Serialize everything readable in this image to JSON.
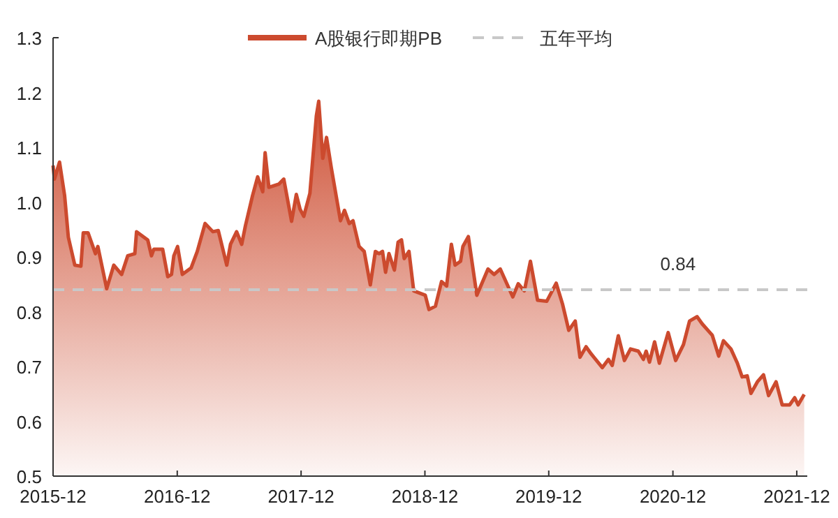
{
  "chart_data": {
    "type": "area",
    "legend": "top",
    "x": [
      "2015-12-01",
      "2015-12-05",
      "2015-12-20",
      "2016-01-04",
      "2016-01-15",
      "2016-02-03",
      "2016-02-21",
      "2016-02-28",
      "2016-03-13",
      "2016-04-04",
      "2016-04-11",
      "2016-05-07",
      "2016-05-28",
      "2016-06-20",
      "2016-07-08",
      "2016-07-29",
      "2016-08-03",
      "2016-09-05",
      "2016-09-16",
      "2016-09-23",
      "2016-10-19",
      "2016-11-03",
      "2016-11-14",
      "2016-11-21",
      "2016-12-02",
      "2016-12-16",
      "2017-01-11",
      "2017-01-29",
      "2017-02-21",
      "2017-03-16",
      "2017-04-01",
      "2017-04-26",
      "2017-05-07",
      "2017-05-25",
      "2017-06-09",
      "2017-06-20",
      "2017-07-11",
      "2017-07-26",
      "2017-08-10",
      "2017-08-17",
      "2017-08-28",
      "2017-09-27",
      "2017-10-11",
      "2017-11-03",
      "2017-11-17",
      "2017-11-28",
      "2017-12-09",
      "2017-12-27",
      "2018-01-15",
      "2018-01-22",
      "2018-02-03",
      "2018-02-14",
      "2018-02-28",
      "2018-03-27",
      "2018-04-08",
      "2018-04-22",
      "2018-05-03",
      "2018-05-21",
      "2018-06-05",
      "2018-06-23",
      "2018-07-08",
      "2018-07-19",
      "2018-07-29",
      "2018-08-07",
      "2018-08-17",
      "2018-09-02",
      "2018-09-13",
      "2018-09-23",
      "2018-10-01",
      "2018-10-15",
      "2018-10-29",
      "2018-12-02",
      "2018-12-13",
      "2019-01-01",
      "2019-01-19",
      "2019-02-03",
      "2019-02-17",
      "2019-02-28",
      "2019-03-16",
      "2019-03-23",
      "2019-04-08",
      "2019-05-03",
      "2019-06-05",
      "2019-06-23",
      "2019-07-11",
      "2019-08-17",
      "2019-09-02",
      "2019-09-20",
      "2019-10-08",
      "2019-10-29",
      "2019-11-25",
      "2019-12-23",
      "2020-01-11",
      "2020-01-29",
      "2020-02-17",
      "2020-03-02",
      "2020-03-20",
      "2020-04-04",
      "2020-05-07",
      "2020-05-25",
      "2020-06-05",
      "2020-06-23",
      "2020-07-11",
      "2020-07-29",
      "2020-08-21",
      "2020-09-05",
      "2020-09-13",
      "2020-09-23",
      "2020-10-08",
      "2020-10-22",
      "2020-11-17",
      "2020-12-09",
      "2021-01-01",
      "2021-01-19",
      "2021-02-10",
      "2021-02-25",
      "2021-03-27",
      "2021-04-15",
      "2021-04-29",
      "2021-05-21",
      "2021-06-09",
      "2021-06-23",
      "2021-07-08",
      "2021-07-19",
      "2021-08-07",
      "2021-08-25",
      "2021-09-09",
      "2021-10-01",
      "2021-10-19",
      "2021-11-10",
      "2021-11-25",
      "2021-12-05",
      "2021-12-23"
    ],
    "series": [
      {
        "name": "A股银行即期PB",
        "color": "#cc4a2e",
        "values": [
          1.067,
          1.042,
          1.073,
          1.012,
          0.936,
          0.885,
          0.883,
          0.944,
          0.944,
          0.906,
          0.919,
          0.842,
          0.885,
          0.868,
          0.902,
          0.906,
          0.946,
          0.931,
          0.902,
          0.914,
          0.914,
          0.864,
          0.868,
          0.902,
          0.919,
          0.868,
          0.88,
          0.91,
          0.961,
          0.946,
          0.948,
          0.885,
          0.923,
          0.946,
          0.923,
          0.957,
          1.012,
          1.046,
          1.019,
          1.09,
          1.027,
          1.033,
          1.042,
          0.965,
          1.014,
          0.987,
          0.974,
          1.016,
          1.157,
          1.184,
          1.08,
          1.118,
          1.063,
          0.966,
          0.985,
          0.961,
          0.966,
          0.919,
          0.91,
          0.849,
          0.91,
          0.906,
          0.91,
          0.872,
          0.906,
          0.876,
          0.927,
          0.931,
          0.897,
          0.91,
          0.838,
          0.83,
          0.804,
          0.81,
          0.855,
          0.847,
          0.923,
          0.885,
          0.892,
          0.919,
          0.937,
          0.83,
          0.878,
          0.868,
          0.878,
          0.827,
          0.851,
          0.838,
          0.892,
          0.821,
          0.819,
          0.852,
          0.813,
          0.766,
          0.783,
          0.717,
          0.736,
          0.723,
          0.698,
          0.713,
          0.702,
          0.756,
          0.711,
          0.732,
          0.728,
          0.713,
          0.728,
          0.708,
          0.745,
          0.706,
          0.762,
          0.711,
          0.74,
          0.783,
          0.791,
          0.778,
          0.757,
          0.719,
          0.747,
          0.732,
          0.706,
          0.681,
          0.683,
          0.651,
          0.672,
          0.685,
          0.647,
          0.672,
          0.63,
          0.63,
          0.643,
          0.63,
          0.649
        ]
      }
    ],
    "ref_lines": [
      {
        "axis": "y",
        "value": 0.84,
        "label": "五年平均",
        "color": "#c8c8c8",
        "line_style": "dashed"
      }
    ],
    "annotations": [
      {
        "text": "0.84",
        "x": "2020-12-16",
        "y": 0.84
      }
    ],
    "xlim": [
      "2015-12",
      "2022-01"
    ],
    "xticks": [
      "2015-12",
      "2016-12",
      "2017-12",
      "2018-12",
      "2019-12",
      "2020-12",
      "2021-12"
    ],
    "ylim": [
      0.5,
      1.3
    ],
    "yticks": [
      0.5,
      0.6,
      0.7,
      0.8,
      0.9,
      {
        "value": 1,
        "label": "1.0"
      },
      1.1,
      1.2,
      1.3
    ]
  }
}
